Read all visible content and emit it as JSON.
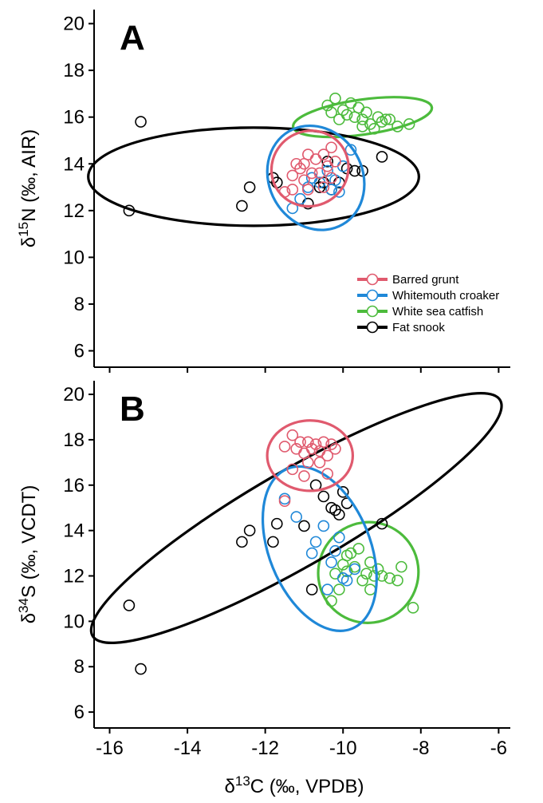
{
  "colors": {
    "Barred grunt": "#e05a6e",
    "Whitemouth croaker": "#1f88d8",
    "White sea catfish": "#4cbb3c",
    "Fat snook": "#000000"
  },
  "legend": [
    "Barred grunt",
    "Whitemouth croaker",
    "White sea catfish",
    "Fat snook"
  ],
  "x_axis": {
    "title_prefix": "δ",
    "title_sup": "13",
    "title_rest": "C (‰, VPDB)",
    "ticks": [
      -16,
      -14,
      -12,
      -10,
      -8,
      -6
    ],
    "range": [
      -16.4,
      -5.7
    ]
  },
  "chart_data": [
    {
      "panel": "A",
      "type": "scatter",
      "ylabel_prefix": "δ",
      "ylabel_sup": "15",
      "ylabel_rest": "N (‰, AIR)",
      "yticks": [
        6,
        8,
        10,
        12,
        14,
        16,
        18,
        20
      ],
      "ylim": [
        5.3,
        20.6
      ],
      "legend_position": "bottom-right",
      "series": [
        {
          "name": "Barred grunt",
          "points": [
            [
              -11.5,
              12.8
            ],
            [
              -11.3,
              12.9
            ],
            [
              -11.3,
              13.5
            ],
            [
              -11.1,
              13.8
            ],
            [
              -11.0,
              13.3
            ],
            [
              -11.0,
              14.0
            ],
            [
              -10.9,
              12.9
            ],
            [
              -10.8,
              13.6
            ],
            [
              -10.7,
              14.2
            ],
            [
              -10.6,
              13.6
            ],
            [
              -10.5,
              14.4
            ],
            [
              -10.4,
              13.9
            ],
            [
              -10.3,
              14.7
            ],
            [
              -10.3,
              13.4
            ],
            [
              -10.2,
              14.1
            ],
            [
              -10.9,
              14.4
            ],
            [
              -11.2,
              14.0
            ],
            [
              -10.5,
              13.0
            ]
          ],
          "ellipse": {
            "cx": -10.85,
            "cy": 13.8,
            "rx": 1.0,
            "ry": 1.6,
            "rot": -30
          }
        },
        {
          "name": "Whitemouth croaker",
          "points": [
            [
              -11.3,
              12.1
            ],
            [
              -11.1,
              12.5
            ],
            [
              -10.9,
              13.0
            ],
            [
              -10.8,
              13.4
            ],
            [
              -10.6,
              13.2
            ],
            [
              -10.4,
              13.7
            ],
            [
              -10.2,
              13.3
            ],
            [
              -10.0,
              13.9
            ],
            [
              -9.8,
              14.6
            ],
            [
              -10.3,
              12.9
            ],
            [
              -10.1,
              12.8
            ]
          ],
          "ellipse": {
            "cx": -10.7,
            "cy": 13.4,
            "rx": 1.2,
            "ry": 2.3,
            "rot": -30
          }
        },
        {
          "name": "White sea catfish",
          "points": [
            [
              -10.4,
              16.5
            ],
            [
              -10.2,
              16.8
            ],
            [
              -10.0,
              16.3
            ],
            [
              -9.8,
              16.6
            ],
            [
              -9.6,
              16.4
            ],
            [
              -9.5,
              15.9
            ],
            [
              -9.4,
              16.2
            ],
            [
              -9.3,
              15.7
            ],
            [
              -9.1,
              16.0
            ],
            [
              -9.0,
              15.8
            ],
            [
              -8.8,
              15.9
            ],
            [
              -8.6,
              15.6
            ],
            [
              -8.3,
              15.7
            ],
            [
              -9.7,
              16.0
            ],
            [
              -9.9,
              16.1
            ],
            [
              -10.1,
              15.9
            ],
            [
              -10.3,
              16.2
            ],
            [
              -9.2,
              15.5
            ],
            [
              -8.9,
              15.9
            ],
            [
              -9.5,
              15.6
            ]
          ],
          "ellipse": {
            "cx": -9.5,
            "cy": 16.0,
            "rx": 1.8,
            "ry": 0.75,
            "rot": -8
          }
        },
        {
          "name": "Fat snook",
          "points": [
            [
              -15.5,
              12.0
            ],
            [
              -15.2,
              15.8
            ],
            [
              -12.6,
              12.2
            ],
            [
              -12.4,
              13.0
            ],
            [
              -11.8,
              13.4
            ],
            [
              -11.7,
              13.2
            ],
            [
              -10.9,
              12.3
            ],
            [
              -10.6,
              13.0
            ],
            [
              -10.5,
              13.2
            ],
            [
              -10.4,
              14.1
            ],
            [
              -10.3,
              12.9
            ],
            [
              -10.1,
              13.2
            ],
            [
              -9.9,
              13.8
            ],
            [
              -9.7,
              13.7
            ],
            [
              -9.5,
              13.7
            ],
            [
              -9.0,
              14.3
            ]
          ],
          "ellipse": {
            "cx": -12.3,
            "cy": 13.45,
            "rx": 4.25,
            "ry": 2.1,
            "rot": 0
          }
        }
      ]
    },
    {
      "panel": "B",
      "type": "scatter",
      "ylabel_prefix": "δ",
      "ylabel_sup": "34",
      "ylabel_rest": "S (‰, VCDT)",
      "yticks": [
        6,
        8,
        10,
        12,
        14,
        16,
        18,
        20
      ],
      "ylim": [
        5.3,
        20.6
      ],
      "series": [
        {
          "name": "Barred grunt",
          "points": [
            [
              -11.5,
              17.7
            ],
            [
              -11.3,
              18.2
            ],
            [
              -11.2,
              17.6
            ],
            [
              -11.1,
              17.9
            ],
            [
              -11.0,
              17.4
            ],
            [
              -10.9,
              17.9
            ],
            [
              -10.8,
              17.6
            ],
            [
              -10.7,
              17.8
            ],
            [
              -10.6,
              17.5
            ],
            [
              -10.5,
              17.9
            ],
            [
              -10.4,
              17.3
            ],
            [
              -10.3,
              17.8
            ],
            [
              -10.2,
              17.6
            ],
            [
              -10.9,
              17.0
            ],
            [
              -10.6,
              17.0
            ],
            [
              -11.0,
              16.4
            ],
            [
              -10.4,
              16.5
            ],
            [
              -11.3,
              16.7
            ],
            [
              -11.5,
              15.3
            ]
          ],
          "ellipse": {
            "cx": -10.85,
            "cy": 17.3,
            "rx": 1.1,
            "ry": 1.55,
            "rot": 0
          }
        },
        {
          "name": "Whitemouth croaker",
          "points": [
            [
              -11.5,
              15.4
            ],
            [
              -11.2,
              14.6
            ],
            [
              -10.8,
              13.0
            ],
            [
              -10.7,
              13.5
            ],
            [
              -10.5,
              14.2
            ],
            [
              -10.3,
              12.6
            ],
            [
              -10.2,
              13.1
            ],
            [
              -10.1,
              13.7
            ],
            [
              -10.0,
              11.9
            ],
            [
              -9.9,
              11.8
            ],
            [
              -9.7,
              12.3
            ],
            [
              -10.4,
              11.4
            ]
          ],
          "ellipse": {
            "cx": -10.6,
            "cy": 13.2,
            "rx": 1.3,
            "ry": 3.8,
            "rot": -22
          }
        },
        {
          "name": "White sea catfish",
          "points": [
            [
              -10.3,
              10.9
            ],
            [
              -10.1,
              11.4
            ],
            [
              -10.0,
              12.5
            ],
            [
              -9.9,
              12.2
            ],
            [
              -9.8,
              13.0
            ],
            [
              -9.7,
              12.4
            ],
            [
              -9.5,
              11.8
            ],
            [
              -9.4,
              12.1
            ],
            [
              -9.3,
              11.4
            ],
            [
              -9.2,
              12.0
            ],
            [
              -9.1,
              12.3
            ],
            [
              -9.0,
              12.0
            ],
            [
              -8.8,
              11.9
            ],
            [
              -8.6,
              11.8
            ],
            [
              -8.5,
              12.4
            ],
            [
              -8.2,
              10.6
            ],
            [
              -9.6,
              13.2
            ],
            [
              -9.3,
              12.6
            ],
            [
              -9.9,
              12.9
            ],
            [
              -10.2,
              12.1
            ]
          ],
          "ellipse": {
            "cx": -9.35,
            "cy": 12.15,
            "rx": 1.3,
            "ry": 2.2,
            "rot": -52
          }
        },
        {
          "name": "Fat snook",
          "points": [
            [
              -15.5,
              10.7
            ],
            [
              -15.2,
              7.9
            ],
            [
              -12.6,
              13.5
            ],
            [
              -12.4,
              14.0
            ],
            [
              -11.8,
              13.5
            ],
            [
              -11.7,
              14.3
            ],
            [
              -11.0,
              14.2
            ],
            [
              -10.8,
              11.4
            ],
            [
              -10.7,
              16.0
            ],
            [
              -10.5,
              15.5
            ],
            [
              -10.3,
              15.0
            ],
            [
              -10.2,
              14.9
            ],
            [
              -10.1,
              14.7
            ],
            [
              -10.0,
              15.7
            ],
            [
              -9.9,
              15.2
            ],
            [
              -9.0,
              14.3
            ]
          ],
          "ellipse": {
            "cx": -11.2,
            "cy": 14.55,
            "rx": 6.05,
            "ry": 2.1,
            "rot": -30
          }
        }
      ]
    }
  ]
}
